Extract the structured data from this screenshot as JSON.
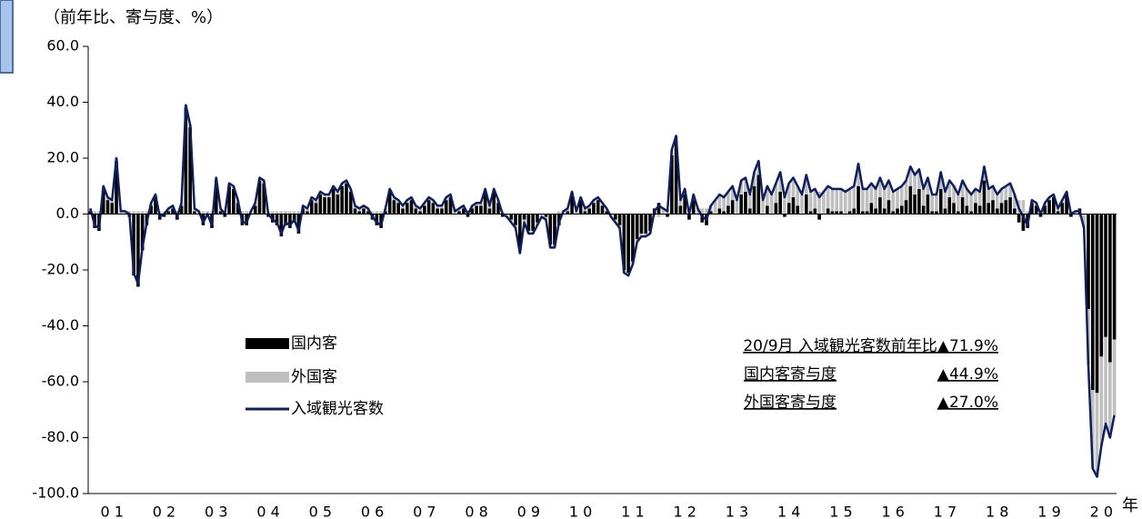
{
  "chart_data": {
    "type": "bar",
    "y_label": "（前年比、寄与度、%）",
    "x_label": "年",
    "categories": [
      null,
      null,
      null,
      null,
      null,
      "0 1",
      null,
      null,
      null,
      null,
      null,
      null,
      null,
      null,
      null,
      null,
      null,
      "0 2",
      null,
      null,
      null,
      null,
      null,
      null,
      null,
      null,
      null,
      null,
      null,
      "0 3",
      null,
      null,
      null,
      null,
      null,
      null,
      null,
      null,
      null,
      null,
      null,
      "0 4",
      null,
      null,
      null,
      null,
      null,
      null,
      null,
      null,
      null,
      null,
      null,
      "0 5",
      null,
      null,
      null,
      null,
      null,
      null,
      null,
      null,
      null,
      null,
      null,
      "0 6",
      null,
      null,
      null,
      null,
      null,
      null,
      null,
      null,
      null,
      null,
      null,
      "0 7",
      null,
      null,
      null,
      null,
      null,
      null,
      null,
      null,
      null,
      null,
      null,
      "0 8",
      null,
      null,
      null,
      null,
      null,
      null,
      null,
      null,
      null,
      null,
      null,
      "0 9",
      null,
      null,
      null,
      null,
      null,
      null,
      null,
      null,
      null,
      null,
      null,
      "1 0",
      null,
      null,
      null,
      null,
      null,
      null,
      null,
      null,
      null,
      null,
      null,
      "1 1",
      null,
      null,
      null,
      null,
      null,
      null,
      null,
      null,
      null,
      null,
      null,
      "1 2",
      null,
      null,
      null,
      null,
      null,
      null,
      null,
      null,
      null,
      null,
      null,
      "1 3",
      null,
      null,
      null,
      null,
      null,
      null,
      null,
      null,
      null,
      null,
      null,
      "1 4",
      null,
      null,
      null,
      null,
      null,
      null,
      null,
      null,
      null,
      null,
      null,
      "1 5",
      null,
      null,
      null,
      null,
      null,
      null,
      null,
      null,
      null,
      null,
      null,
      "1 6",
      null,
      null,
      null,
      null,
      null,
      null,
      null,
      null,
      null,
      null,
      null,
      "1 7",
      null,
      null,
      null,
      null,
      null,
      null,
      null,
      null,
      null,
      null,
      null,
      "1 8",
      null,
      null,
      null,
      null,
      null,
      null,
      null,
      null,
      null,
      null,
      null,
      "1 9",
      null,
      null,
      null,
      null,
      null,
      null,
      null,
      null,
      null,
      null,
      null,
      "2 0",
      null,
      null,
      null
    ],
    "series": [
      {
        "name": "国内客",
        "color": "#000000",
        "values": [
          1,
          -5,
          -6,
          9,
          5,
          4,
          19,
          0,
          0,
          -1,
          -22,
          -26,
          -13,
          -4,
          3,
          6,
          -2,
          -1,
          1,
          2,
          -2,
          3,
          38,
          31,
          1,
          0,
          -4,
          -1,
          -5,
          12,
          1,
          -1,
          10,
          9,
          4,
          -4,
          -4,
          0,
          3,
          12,
          11,
          -1,
          -3,
          -4,
          -8,
          -4,
          -5,
          -3,
          -7,
          2,
          1,
          5,
          4,
          7,
          6,
          6,
          9,
          7,
          10,
          11,
          8,
          2,
          1,
          2,
          1,
          -2,
          -4,
          -5,
          1,
          8,
          5,
          4,
          2,
          4,
          5,
          2,
          1,
          3,
          5,
          4,
          2,
          2,
          5,
          6,
          0,
          1,
          2,
          -1,
          2,
          3,
          3,
          8,
          2,
          8,
          4,
          -1,
          0,
          -2,
          -4,
          -13,
          -2,
          -6,
          -6,
          -3,
          0,
          -1,
          -11,
          -11,
          -4,
          0,
          1,
          7,
          0,
          5,
          1,
          2,
          4,
          5,
          3,
          1,
          0,
          -2,
          -4,
          -20,
          -21,
          -17,
          -9,
          -7,
          -7,
          -6,
          2,
          4,
          0,
          -1,
          21,
          26,
          3,
          7,
          -2,
          5,
          0,
          -3,
          -4,
          1,
          0,
          2,
          1,
          3,
          5,
          0,
          7,
          8,
          2,
          10,
          14,
          0,
          3,
          0,
          4,
          8,
          -1,
          4,
          6,
          3,
          0,
          7,
          1,
          2,
          -2,
          0,
          2,
          1,
          1,
          1,
          0,
          1,
          2,
          10,
          1,
          1,
          4,
          2,
          6,
          2,
          5,
          1,
          2,
          3,
          5,
          10,
          7,
          9,
          3,
          7,
          1,
          1,
          9,
          2,
          6,
          4,
          1,
          6,
          3,
          1,
          4,
          3,
          12,
          4,
          5,
          2,
          4,
          5,
          6,
          2,
          -3,
          -6,
          -5,
          4,
          3,
          -1,
          3,
          5,
          6,
          1,
          4,
          7,
          -1,
          0,
          2,
          0,
          -34,
          -63,
          -64,
          -51,
          -44,
          -53,
          -44.9
        ]
      },
      {
        "name": "外国客",
        "color": "#bfbfbf",
        "values": [
          1,
          1,
          1,
          1,
          1,
          1,
          1,
          1,
          1,
          1,
          1,
          1,
          1,
          1,
          1,
          1,
          1,
          1,
          1,
          1,
          1,
          1,
          1,
          1,
          1,
          1,
          1,
          1,
          1,
          1,
          1,
          1,
          1,
          1,
          1,
          1,
          1,
          1,
          1,
          1,
          1,
          1,
          1,
          1,
          1,
          1,
          1,
          1,
          1,
          1,
          1,
          1,
          1,
          1,
          1,
          1,
          1,
          1,
          1,
          1,
          1,
          1,
          1,
          1,
          1,
          1,
          1,
          1,
          1,
          1,
          1,
          1,
          1,
          1,
          1,
          1,
          1,
          1,
          1,
          1,
          1,
          1,
          1,
          1,
          1,
          1,
          1,
          1,
          1,
          1,
          1,
          1,
          1,
          1,
          1,
          1,
          -1,
          -1,
          -1,
          -1,
          -1,
          -1,
          -1,
          -1,
          -1,
          -1,
          -1,
          -1,
          1,
          1,
          1,
          1,
          1,
          1,
          1,
          1,
          1,
          1,
          1,
          1,
          -1,
          -1,
          -1,
          -1,
          -1,
          -1,
          -1,
          -1,
          -1,
          -1,
          -1,
          -1,
          2,
          2,
          2,
          2,
          2,
          2,
          2,
          2,
          2,
          2,
          2,
          2,
          5,
          5,
          5,
          5,
          5,
          5,
          5,
          5,
          5,
          5,
          5,
          5,
          7,
          7,
          7,
          7,
          7,
          7,
          7,
          7,
          7,
          7,
          7,
          7,
          8,
          8,
          8,
          8,
          8,
          8,
          8,
          8,
          8,
          8,
          8,
          8,
          7,
          7,
          7,
          7,
          7,
          7,
          7,
          7,
          7,
          7,
          7,
          7,
          6,
          6,
          6,
          6,
          6,
          6,
          6,
          6,
          6,
          6,
          6,
          6,
          5,
          5,
          5,
          5,
          5,
          5,
          5,
          5,
          5,
          5,
          5,
          5,
          1,
          1,
          1,
          1,
          1,
          1,
          1,
          1,
          1,
          1,
          1,
          1,
          -1,
          -5,
          -20,
          -28,
          -30,
          -32,
          -31,
          -27,
          -27.0
        ]
      },
      {
        "name": "入域観光客数",
        "color": "#0d1f5c",
        "kind": "line",
        "values": [
          2,
          -4,
          -5,
          10,
          6,
          5,
          20,
          1,
          1,
          0,
          -21,
          -25,
          -12,
          -3,
          4,
          7,
          -1,
          0,
          2,
          3,
          -1,
          4,
          39,
          32,
          2,
          1,
          -3,
          0,
          -4,
          13,
          2,
          0,
          11,
          10,
          5,
          -3,
          -3,
          1,
          4,
          13,
          12,
          0,
          -2,
          -3,
          -7,
          -3,
          -4,
          -2,
          -6,
          3,
          2,
          6,
          5,
          8,
          7,
          7,
          10,
          8,
          11,
          12,
          9,
          3,
          2,
          3,
          2,
          -1,
          -3,
          -4,
          2,
          9,
          6,
          5,
          3,
          5,
          6,
          3,
          2,
          4,
          6,
          5,
          3,
          3,
          6,
          7,
          1,
          2,
          3,
          0,
          3,
          4,
          4,
          9,
          3,
          9,
          5,
          0,
          -1,
          -3,
          -5,
          -14,
          -3,
          -7,
          -7,
          -4,
          -1,
          -2,
          -12,
          -12,
          -3,
          1,
          2,
          8,
          1,
          6,
          2,
          3,
          5,
          6,
          4,
          2,
          -1,
          -3,
          -5,
          -21,
          -22,
          -18,
          -10,
          -8,
          -8,
          -7,
          1,
          3,
          2,
          1,
          23,
          28,
          5,
          9,
          0,
          7,
          2,
          -1,
          -2,
          3,
          5,
          7,
          6,
          8,
          10,
          5,
          12,
          13,
          7,
          15,
          19,
          5,
          10,
          7,
          11,
          15,
          6,
          11,
          13,
          10,
          7,
          14,
          8,
          9,
          6,
          8,
          10,
          9,
          9,
          9,
          8,
          9,
          10,
          18,
          9,
          9,
          11,
          9,
          13,
          9,
          12,
          8,
          9,
          10,
          12,
          17,
          14,
          16,
          9,
          13,
          7,
          7,
          15,
          8,
          12,
          10,
          7,
          12,
          9,
          7,
          9,
          8,
          17,
          9,
          10,
          7,
          9,
          10,
          11,
          7,
          2,
          -1,
          -4,
          5,
          4,
          0,
          4,
          6,
          7,
          2,
          5,
          8,
          0,
          1,
          1,
          -5,
          -54,
          -91,
          -94,
          -83,
          -75,
          -80,
          -71.9
        ]
      }
    ],
    "ylim": [
      -100,
      60
    ],
    "yticks": [
      {
        "value": 60,
        "label": "60.0"
      },
      {
        "value": 40,
        "label": "40.0"
      },
      {
        "value": 20,
        "label": "20.0"
      },
      {
        "value": 0,
        "label": "0.0"
      },
      {
        "value": -20,
        "label": "-20.0"
      },
      {
        "value": -40,
        "label": "-40.0"
      },
      {
        "value": -60,
        "label": "-60.0"
      },
      {
        "value": -80,
        "label": "-80.0"
      },
      {
        "value": -100,
        "label": "-100.0"
      }
    ],
    "annotations": [
      "20/9月 入域観光客数前年比▲71.9%",
      "国内客寄与度",
      "▲44.9%",
      "外国客寄与度",
      "▲27.0%"
    ]
  }
}
